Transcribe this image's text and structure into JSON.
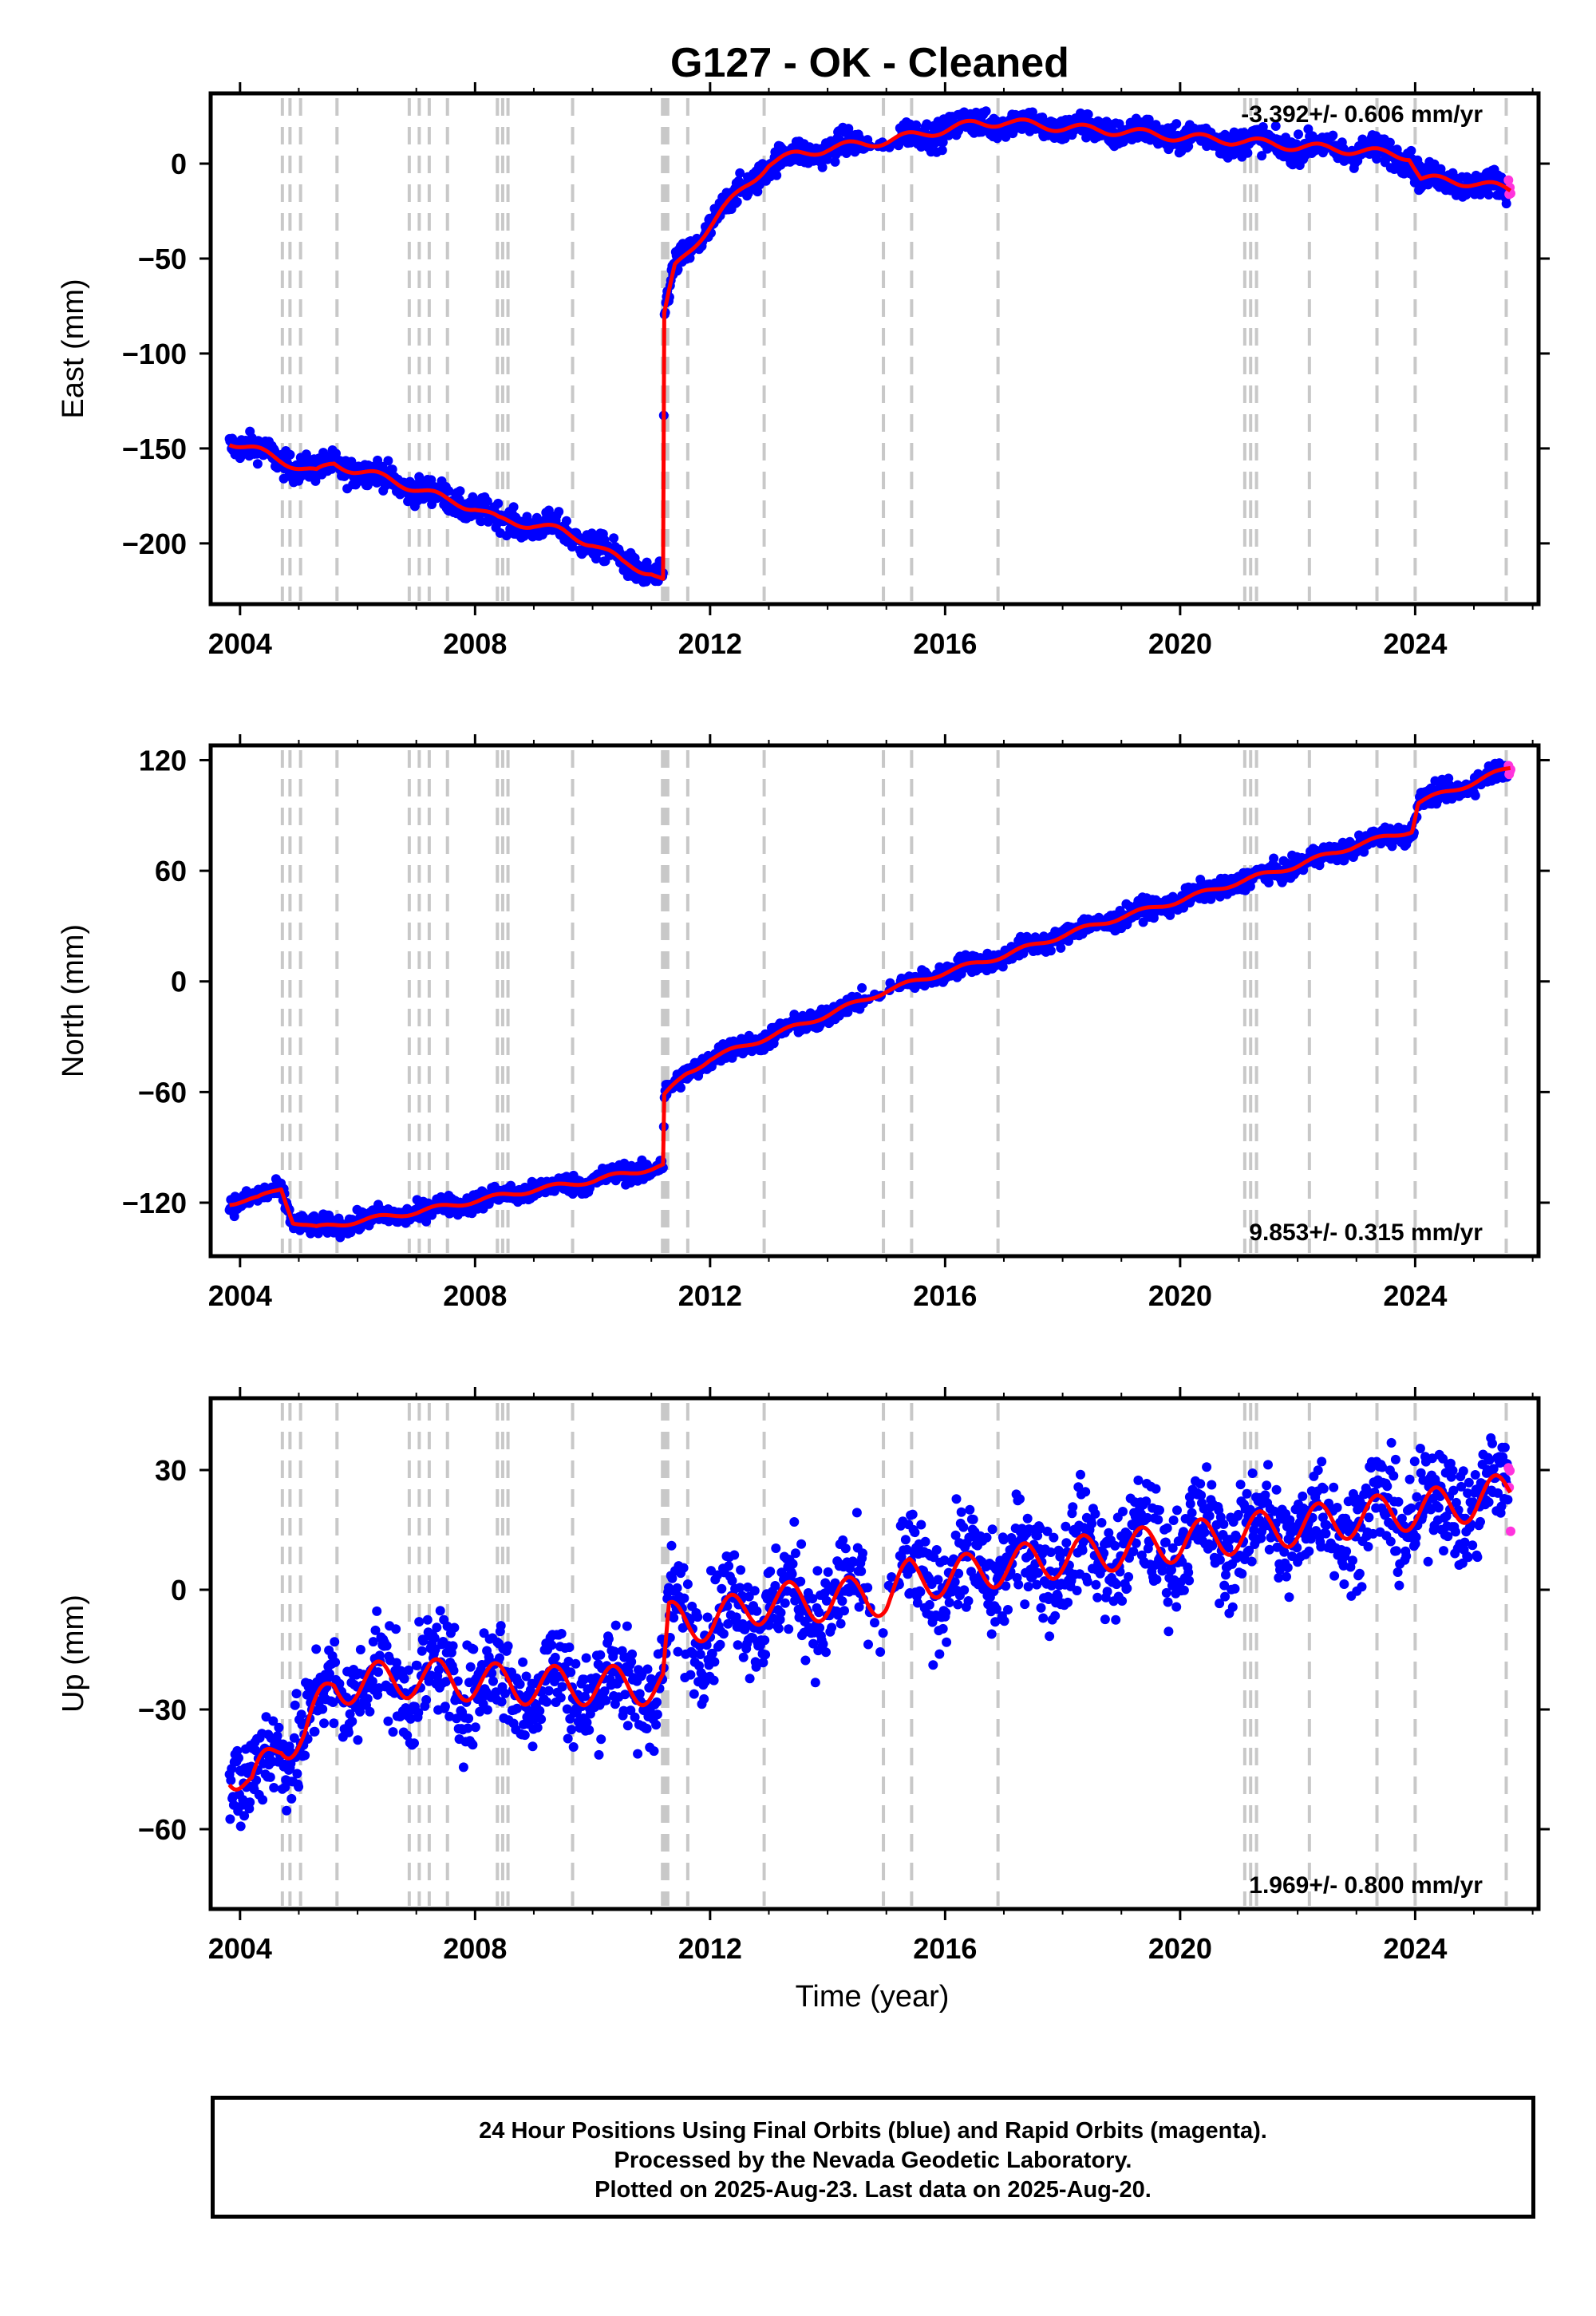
{
  "figure": {
    "title": "G127  - OK - Cleaned",
    "xlabel": "Time (year)"
  },
  "colors": {
    "final_points": "#0000ff",
    "rapid_points": "#ff33dd",
    "model_line": "#ff0000",
    "event_lines": "#c8c8c8"
  },
  "footer": {
    "line1": "24 Hour Positions Using Final Orbits (blue) and Rapid Orbits (magenta).",
    "line2": "Processed by the Nevada Geodetic Laboratory.",
    "line3": "Plotted on 2025-Aug-23. Last data on 2025-Aug-20."
  },
  "chart_data": [
    {
      "type": "scatter",
      "ylabel": "East (mm)",
      "rate_label": "-3.392+/- 0.606 mm/yr",
      "rate_position": "top-right",
      "xlim": [
        2003.5,
        2026.1
      ],
      "ylim": [
        -232,
        37
      ],
      "xticks": [
        2004,
        2008,
        2012,
        2016,
        2020,
        2024
      ],
      "yticks": [
        0,
        -50,
        -100,
        -150,
        -200
      ],
      "ytick_labels": [
        "0",
        "−50",
        "−100",
        "−150",
        "−200"
      ],
      "event_lines": [
        2004.72,
        2004.85,
        2005.03,
        2005.65,
        2006.88,
        2007.05,
        2007.22,
        2007.53,
        2008.38,
        2008.47,
        2008.56,
        2009.66,
        2011.19,
        2011.23,
        2011.28,
        2011.62,
        2012.92,
        2014.95,
        2015.43,
        2016.9,
        2021.1,
        2021.2,
        2021.3,
        2022.2,
        2023.35,
        2024.0,
        2025.55
      ],
      "model": [
        [
          2003.82,
          -146
        ],
        [
          2004.7,
          -156
        ],
        [
          2005.3,
          -163
        ],
        [
          2005.6,
          -158
        ],
        [
          2006.5,
          -166
        ],
        [
          2007.0,
          -171
        ],
        [
          2007.5,
          -177
        ],
        [
          2008.0,
          -181
        ],
        [
          2008.4,
          -188
        ],
        [
          2009.0,
          -190
        ],
        [
          2009.5,
          -194
        ],
        [
          2010.0,
          -200
        ],
        [
          2010.5,
          -210
        ],
        [
          2011.0,
          -215
        ],
        [
          2011.2,
          -220
        ],
        [
          2011.22,
          -80
        ],
        [
          2011.4,
          -55
        ],
        [
          2011.8,
          -40
        ],
        [
          2012.2,
          -25
        ],
        [
          2012.6,
          -12
        ],
        [
          2013.0,
          0
        ],
        [
          2013.5,
          5
        ],
        [
          2014.0,
          8
        ],
        [
          2014.5,
          10
        ],
        [
          2015.0,
          12
        ],
        [
          2015.5,
          15
        ],
        [
          2016.0,
          18
        ],
        [
          2016.5,
          21
        ],
        [
          2017.0,
          22
        ],
        [
          2018.0,
          19
        ],
        [
          2019.0,
          17
        ],
        [
          2020.0,
          14
        ],
        [
          2021.0,
          12
        ],
        [
          2022.0,
          9
        ],
        [
          2023.0,
          7
        ],
        [
          2023.9,
          4
        ],
        [
          2024.1,
          -8
        ],
        [
          2025.0,
          -10
        ],
        [
          2025.63,
          -14
        ]
      ],
      "noise": 3.5,
      "seasonal": 2.5,
      "rapid_range": [
        2025.45,
        2025.64
      ]
    },
    {
      "type": "scatter",
      "ylabel": "North (mm)",
      "rate_label": "9.853+/- 0.315 mm/yr",
      "rate_position": "bottom-right",
      "xlim": [
        2003.5,
        2026.1
      ],
      "ylim": [
        -149,
        128
      ],
      "xticks": [
        2004,
        2008,
        2012,
        2016,
        2020,
        2024
      ],
      "yticks": [
        120,
        60,
        0,
        -60,
        -120
      ],
      "ytick_labels": [
        "120",
        "60",
        "0",
        "−60",
        "−120"
      ],
      "event_lines": [
        2004.72,
        2004.85,
        2005.03,
        2005.65,
        2006.88,
        2007.05,
        2007.22,
        2007.53,
        2008.38,
        2008.47,
        2008.56,
        2009.66,
        2011.19,
        2011.23,
        2011.28,
        2011.62,
        2012.92,
        2014.95,
        2015.43,
        2016.9,
        2021.1,
        2021.2,
        2021.3,
        2022.2,
        2023.35,
        2024.0,
        2025.55
      ],
      "model": [
        [
          2003.82,
          -120
        ],
        [
          2004.3,
          -118
        ],
        [
          2004.7,
          -112
        ],
        [
          2004.9,
          -130
        ],
        [
          2005.3,
          -134
        ],
        [
          2005.6,
          -132
        ],
        [
          2006.0,
          -130
        ],
        [
          2007.0,
          -125
        ],
        [
          2008.0,
          -119
        ],
        [
          2009.0,
          -113
        ],
        [
          2010.0,
          -108
        ],
        [
          2011.2,
          -100
        ],
        [
          2011.22,
          -62
        ],
        [
          2011.6,
          -50
        ],
        [
          2012.0,
          -42
        ],
        [
          2013.0,
          -30
        ],
        [
          2014.0,
          -18
        ],
        [
          2015.0,
          -5
        ],
        [
          2016.0,
          5
        ],
        [
          2017.0,
          14
        ],
        [
          2018.0,
          25
        ],
        [
          2019.0,
          35
        ],
        [
          2020.0,
          44
        ],
        [
          2021.0,
          54
        ],
        [
          2022.0,
          63
        ],
        [
          2023.0,
          74
        ],
        [
          2023.95,
          82
        ],
        [
          2024.05,
          97
        ],
        [
          2025.0,
          108
        ],
        [
          2025.63,
          116
        ]
      ],
      "noise": 2.6,
      "seasonal": 1.5,
      "rapid_range": [
        2025.45,
        2025.64
      ]
    },
    {
      "type": "scatter",
      "ylabel": "Up (mm)",
      "rate_label": "1.969+/- 0.800 mm/yr",
      "rate_position": "bottom-right",
      "xlim": [
        2003.5,
        2026.1
      ],
      "ylim": [
        -80,
        48
      ],
      "xticks": [
        2004,
        2008,
        2012,
        2016,
        2020,
        2024
      ],
      "yticks": [
        30,
        0,
        -30,
        -60
      ],
      "ytick_labels": [
        "30",
        "0",
        "−30",
        "−60"
      ],
      "event_lines": [
        2004.72,
        2004.85,
        2005.03,
        2005.65,
        2006.88,
        2007.05,
        2007.22,
        2007.53,
        2008.38,
        2008.47,
        2008.56,
        2009.66,
        2011.19,
        2011.23,
        2011.28,
        2011.62,
        2012.92,
        2014.95,
        2015.43,
        2016.9,
        2021.1,
        2021.2,
        2021.3,
        2022.2,
        2023.35,
        2024.0,
        2025.55
      ],
      "model": [
        [
          2003.82,
          -44
        ],
        [
          2004.2,
          -50
        ],
        [
          2004.7,
          -38
        ],
        [
          2005.1,
          -36
        ],
        [
          2005.6,
          -24
        ],
        [
          2007.0,
          -22
        ],
        [
          2008.0,
          -23
        ],
        [
          2009.0,
          -24
        ],
        [
          2010.0,
          -24
        ],
        [
          2011.2,
          -24
        ],
        [
          2011.3,
          -8
        ],
        [
          2012.0,
          -8
        ],
        [
          2013.0,
          -3
        ],
        [
          2014.0,
          -3
        ],
        [
          2014.6,
          -1
        ],
        [
          2015.0,
          -2
        ],
        [
          2015.4,
          3
        ],
        [
          2016.0,
          3
        ],
        [
          2017.0,
          6
        ],
        [
          2018.0,
          8
        ],
        [
          2019.0,
          10
        ],
        [
          2020.0,
          12
        ],
        [
          2021.0,
          14
        ],
        [
          2022.0,
          16
        ],
        [
          2023.0,
          18
        ],
        [
          2024.0,
          20
        ],
        [
          2025.0,
          22
        ],
        [
          2025.63,
          25
        ]
      ],
      "noise": 6.5,
      "seasonal": 5.5,
      "rapid_range": [
        2025.45,
        2025.64
      ]
    }
  ]
}
